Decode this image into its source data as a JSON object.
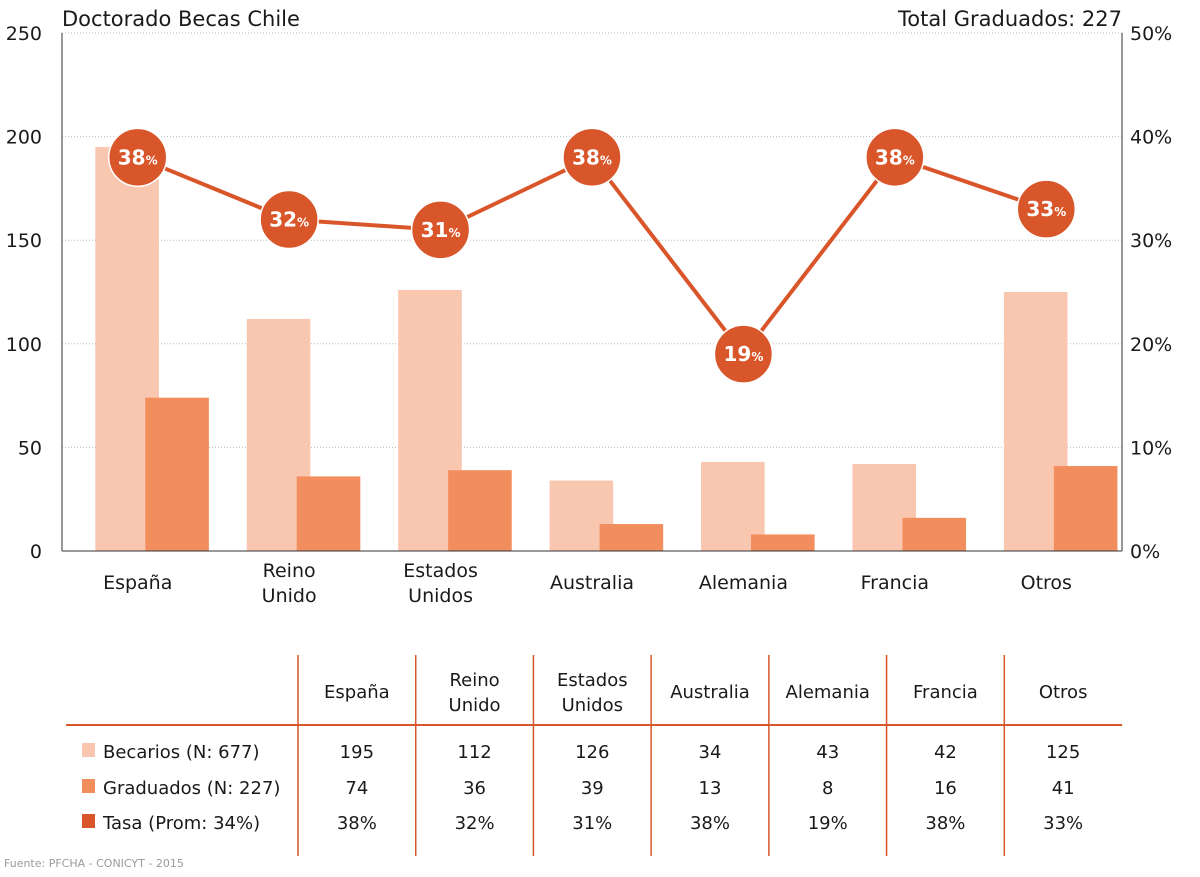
{
  "chart_data": {
    "type": "bar",
    "title": "Doctorado Becas Chile",
    "subtitle": "Total Graduados: 227",
    "categories": [
      [
        "España"
      ],
      [
        "Reino",
        "Unido"
      ],
      [
        "Estados",
        "Unidos"
      ],
      [
        "Australia"
      ],
      [
        "Alemania"
      ],
      [
        "Francia"
      ],
      [
        "Otros"
      ]
    ],
    "table_headers": [
      [
        "España"
      ],
      [
        "Reino",
        "Unido"
      ],
      [
        "Estados",
        "Unidos"
      ],
      [
        "Australia"
      ],
      [
        "Alemania"
      ],
      [
        "Francia"
      ],
      [
        "Otros"
      ]
    ],
    "ylim": [
      0,
      250
    ],
    "yticks": [
      "0",
      "50",
      "100",
      "150",
      "200",
      "250"
    ],
    "y2lim": [
      0,
      50
    ],
    "y2ticks": [
      "0%",
      "10%",
      "20%",
      "30%",
      "40%",
      "50%"
    ],
    "pct_symbol": "%",
    "grid": true,
    "series": [
      {
        "name": "Becarios (N: 677)",
        "type": "bar",
        "color": "#f9c6b0",
        "values": [
          195,
          112,
          126,
          34,
          43,
          42,
          125
        ],
        "display": [
          "195",
          "112",
          "126",
          "34",
          "43",
          "42",
          "125"
        ]
      },
      {
        "name": "Graduados (N: 227)",
        "type": "bar",
        "color": "#f28d5e",
        "values": [
          74,
          36,
          39,
          13,
          8,
          16,
          41
        ],
        "display": [
          "74",
          "36",
          "39",
          "13",
          "8",
          "16",
          "41"
        ]
      },
      {
        "name": "Tasa (Prom: 34%)",
        "type": "line",
        "axis": "right",
        "color": "#d9552a",
        "values": [
          38,
          32,
          31,
          38,
          19,
          38,
          33
        ],
        "display": [
          "38%",
          "32%",
          "31%",
          "38%",
          "19%",
          "38%",
          "33%"
        ]
      }
    ]
  },
  "source": "Fuente: PFCHA - CONICYT - 2015"
}
